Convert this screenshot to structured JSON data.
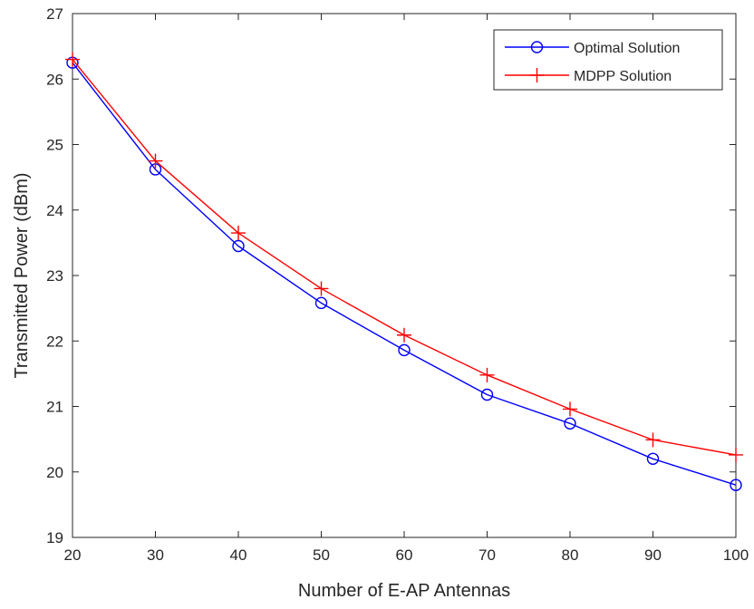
{
  "chart_data": {
    "type": "line",
    "title": "",
    "xlabel": "Number of E-AP Antennas",
    "ylabel": "Transmitted Power (dBm)",
    "xlim": [
      20,
      100
    ],
    "ylim": [
      19,
      27
    ],
    "xticks": [
      20,
      30,
      40,
      50,
      60,
      70,
      80,
      90,
      100
    ],
    "yticks": [
      19,
      20,
      21,
      22,
      23,
      24,
      25,
      26,
      27
    ],
    "grid": false,
    "legend_position": "top-right",
    "x": [
      20,
      30,
      40,
      50,
      60,
      70,
      80,
      90,
      100
    ],
    "series": [
      {
        "name": "Optimal Solution",
        "color": "#0000ff",
        "marker": "circle",
        "values": [
          26.25,
          24.62,
          23.45,
          22.58,
          21.86,
          21.18,
          20.74,
          20.2,
          19.8
        ]
      },
      {
        "name": "MDPP Solution",
        "color": "#ff0000",
        "marker": "plus",
        "values": [
          26.3,
          24.75,
          23.65,
          22.8,
          22.09,
          21.48,
          20.96,
          20.49,
          20.26
        ]
      }
    ]
  }
}
